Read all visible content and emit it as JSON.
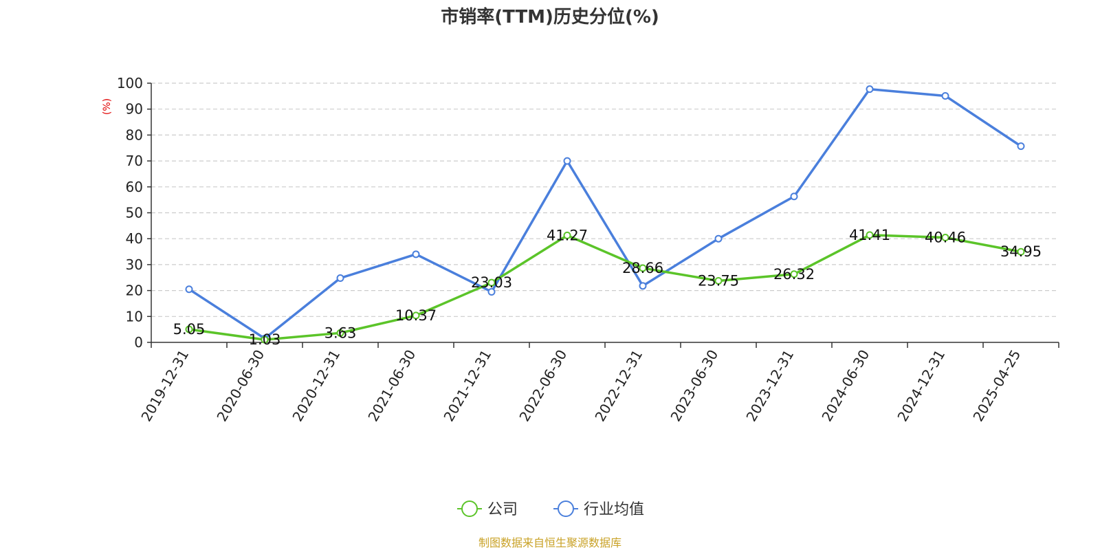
{
  "chart_data": {
    "type": "line",
    "title": "市销率(TTM)历史分位(%)",
    "ylabel": "(%)",
    "categories": [
      "2019-12-31",
      "2020-06-30",
      "2020-12-31",
      "2021-06-30",
      "2021-12-31",
      "2022-06-30",
      "2022-12-31",
      "2023-06-30",
      "2023-12-31",
      "2024-06-30",
      "2024-12-31",
      "2025-04-25"
    ],
    "ylim": [
      0,
      100
    ],
    "yticks": [
      0,
      10,
      20,
      30,
      40,
      50,
      60,
      70,
      80,
      90,
      100
    ],
    "grid": true,
    "legend_position": "bottom",
    "series": [
      {
        "name": "公司",
        "color": "#5bc429",
        "values": [
          5.05,
          1.03,
          3.63,
          10.37,
          23.03,
          41.27,
          28.66,
          23.75,
          26.32,
          41.41,
          40.46,
          34.95
        ],
        "labels": [
          "5.05",
          "1.03",
          "3.63",
          "10.37",
          "23.03",
          "41.27",
          "28.66",
          "23.75",
          "26.32",
          "41.41",
          "40.46",
          "34.95"
        ]
      },
      {
        "name": "行业均值",
        "color": "#4a7fdc",
        "values": [
          20.5,
          1.5,
          24.8,
          34.0,
          19.5,
          70.0,
          21.8,
          40.0,
          56.3,
          97.7,
          95.1,
          75.7
        ]
      }
    ]
  },
  "footer": {
    "source": "制图数据来自恒生聚源数据库"
  }
}
